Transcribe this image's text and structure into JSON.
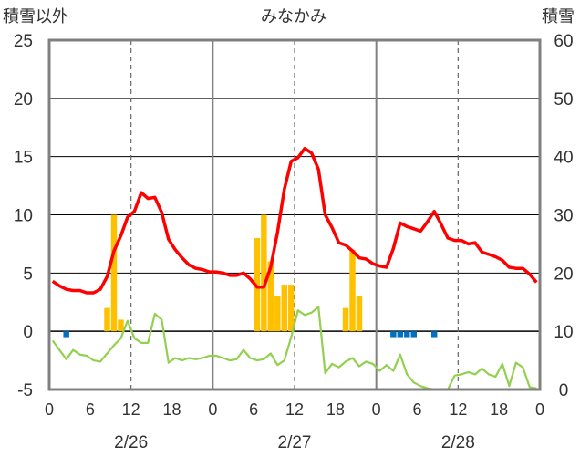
{
  "chart_data": {
    "title": "みなかみ",
    "left_axis_label": "積雪以外",
    "right_axis_label": "積雪",
    "left_ylim": [
      -5,
      25
    ],
    "left_yticks": [
      "-5",
      "0",
      "5",
      "10",
      "15",
      "20",
      "25"
    ],
    "right_ylim": [
      0,
      60
    ],
    "right_yticks": [
      "0",
      "10",
      "20",
      "30",
      "40",
      "50",
      "60"
    ],
    "x_ticks": [
      "0",
      "6",
      "12",
      "18",
      "0",
      "6",
      "12",
      "18",
      "0",
      "6",
      "12",
      "18",
      "0"
    ],
    "dates": [
      "2/26",
      "2/27",
      "2/28"
    ],
    "x_range_hours": [
      0,
      72
    ],
    "colors": {
      "temperature": "#ff0000",
      "precip": "#ffc000",
      "sunshine": "#0070c0",
      "wind": "#92d050",
      "snow_depth": "#7030a0",
      "frame": "#808080"
    },
    "series": [
      {
        "type": "line",
        "color": "#ff0000",
        "axis": "left",
        "x": [
          0,
          1,
          2,
          3,
          4,
          5,
          6,
          7,
          8,
          9,
          10,
          11,
          12,
          13,
          14,
          15,
          16,
          17,
          18,
          19,
          20,
          21,
          22,
          23,
          24,
          25,
          26,
          27,
          28,
          29,
          30,
          31,
          32,
          33,
          34,
          35,
          36,
          37,
          38,
          39,
          40,
          41,
          42,
          43,
          44,
          45,
          46,
          47,
          48,
          49,
          50,
          51,
          52,
          53,
          54,
          55,
          56,
          57,
          58,
          59,
          60,
          61,
          62,
          63,
          64,
          65,
          66,
          67,
          68,
          69,
          70,
          71
        ],
        "values": [
          4.3,
          3.9,
          3.6,
          3.5,
          3.5,
          3.3,
          3.3,
          3.6,
          4.7,
          6.9,
          8.2,
          9.8,
          10.3,
          11.9,
          11.4,
          11.5,
          10.2,
          7.9,
          7,
          6.3,
          5.7,
          5.4,
          5.3,
          5.1,
          5.1,
          5.0,
          4.8,
          4.8,
          5.0,
          4.5,
          3.8,
          3.8,
          5.5,
          8.5,
          12.2,
          14.6,
          14.9,
          15.7,
          15.3,
          13.9,
          10.0,
          8.9,
          7.6,
          7.4,
          6.9,
          6.3,
          6.2,
          5.8,
          5.6,
          5.5,
          7.1,
          9.3,
          9.0,
          8.8,
          8.6,
          9.4,
          10.3,
          9.2,
          8.0,
          7.8,
          7.8,
          7.5,
          7.6,
          6.8,
          6.6,
          6.4,
          6.1,
          5.5,
          5.4,
          5.4,
          4.9,
          4.2
        ]
      },
      {
        "type": "bar",
        "color": "#ffc000",
        "axis": "left",
        "x": [
          8,
          9,
          10,
          30,
          31,
          32,
          33,
          34,
          35,
          36,
          43,
          44,
          45
        ],
        "values": [
          2,
          10,
          1,
          8,
          10,
          6,
          3,
          4,
          4,
          0,
          2,
          7,
          3
        ]
      },
      {
        "type": "bar",
        "color": "#0070c0",
        "axis": "left",
        "x": [
          2,
          50,
          51,
          52,
          53,
          56
        ],
        "values": [
          -0.5,
          -0.5,
          -0.5,
          -0.5,
          -0.5,
          -0.5
        ]
      },
      {
        "type": "line",
        "color": "#92d050",
        "axis": "left",
        "x": [
          0,
          1,
          2,
          3,
          4,
          5,
          6,
          7,
          8,
          9,
          10,
          11,
          12,
          13,
          14,
          15,
          16,
          17,
          18,
          19,
          20,
          21,
          22,
          23,
          24,
          25,
          26,
          27,
          28,
          29,
          30,
          31,
          32,
          33,
          34,
          35,
          36,
          37,
          38,
          39,
          40,
          41,
          42,
          43,
          44,
          45,
          46,
          47,
          48,
          49,
          50,
          51,
          52,
          53,
          54,
          55,
          56,
          57,
          58,
          59,
          60,
          61,
          62,
          63,
          64,
          65,
          66,
          67,
          68,
          69,
          70,
          71
        ],
        "values": [
          -0.8,
          -1.6,
          -2.4,
          -1.6,
          -2.0,
          -2.1,
          -2.5,
          -2.6,
          -1.9,
          -1.2,
          -0.6,
          0.9,
          -0.6,
          -1.0,
          -1.0,
          1.5,
          1.0,
          -2.7,
          -2.3,
          -2.5,
          -2.3,
          -2.4,
          -2.3,
          -2.1,
          -2.1,
          -2.3,
          -2.5,
          -2.4,
          -1.6,
          -2.3,
          -2.5,
          -2.4,
          -1.9,
          -2.9,
          -2.5,
          -0.5,
          1.8,
          1.4,
          1.6,
          2.1,
          -3.6,
          -2.8,
          -3.1,
          -2.6,
          -2.3,
          -3.0,
          -2.6,
          -2.8,
          -3.4,
          -2.9,
          -3.4,
          -2.0,
          -3.7,
          -4.4,
          -4.7,
          -4.9,
          -5.0,
          -5.0,
          -5.0,
          -3.8,
          -3.7,
          -3.5,
          -3.7,
          -3.2,
          -3.7,
          -3.9,
          -2.8,
          -4.7,
          -2.7,
          -3.1,
          -4.8,
          -4.9
        ]
      },
      {
        "type": "line",
        "color": "#7030a0",
        "axis": "right",
        "x": [
          0,
          72
        ],
        "values": [
          0,
          0
        ]
      }
    ]
  }
}
